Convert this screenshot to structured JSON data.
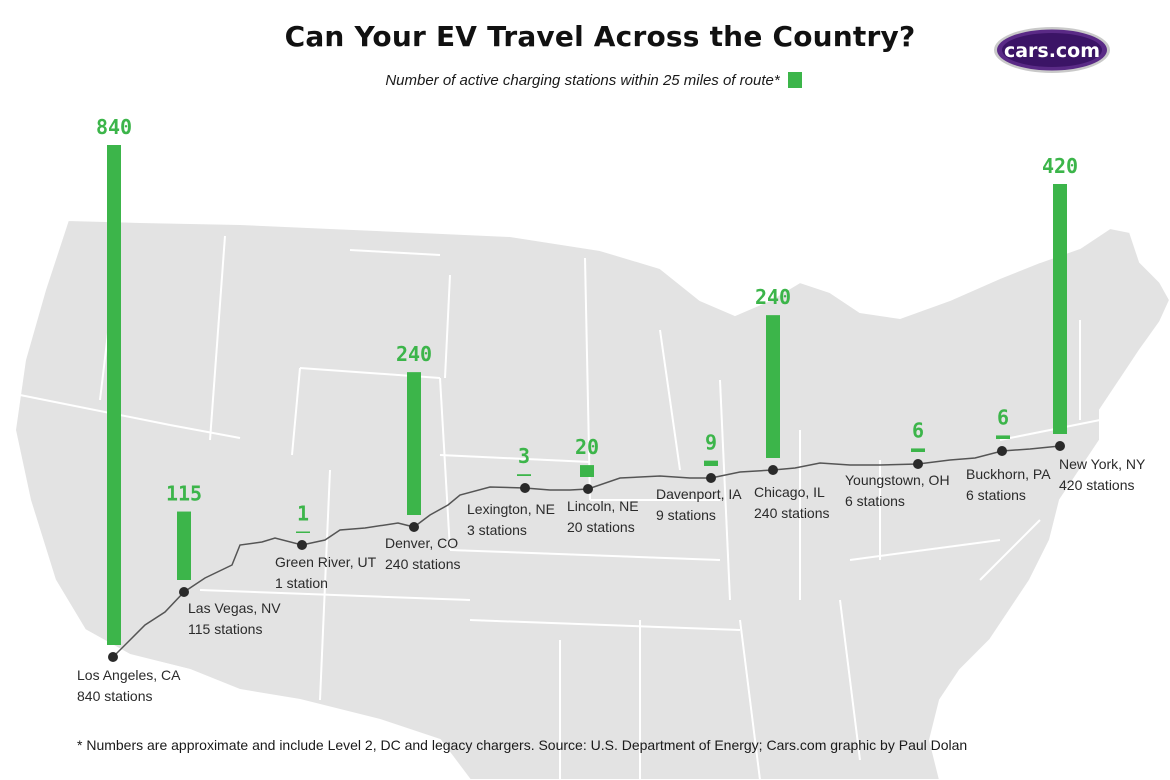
{
  "header": {
    "title": "Can Your EV Travel Across the Country?",
    "subtitle": "Number of active charging stations within 25 miles of  route*",
    "logo_text": "cars.com"
  },
  "footnote": "* Numbers are approximate and include Level 2, DC and legacy chargers. Source: U.S. Department of Energy; Cars.com graphic by Paul Dolan",
  "colors": {
    "bar": "#3cb54a",
    "map": "#e3e3e3",
    "route": "#555555",
    "dot": "#2a2a2a",
    "logo_outer": "#5a2a86",
    "logo_inner": "#3b1466"
  },
  "chart_data": {
    "type": "bar",
    "title": "Can Your EV Travel Across the Country?",
    "subtitle": "Number of active charging stations within 25 miles of  route*",
    "legend": "top-center",
    "categories": [
      "Los Angeles, CA",
      "Las Vegas, NV",
      "Green River, UT",
      "Denver, CO",
      "Lexington, NE",
      "Lincoln, NE",
      "Davenport, IA",
      "Chicago, IL",
      "Youngstown, OH",
      "Buckhorn, PA",
      "New York, NY"
    ],
    "values": [
      840,
      115,
      1,
      240,
      3,
      20,
      9,
      240,
      6,
      6,
      420
    ],
    "value_labels": [
      "840",
      "115",
      "1",
      "240",
      "3",
      "20",
      "9",
      "240",
      "6",
      "6",
      "420"
    ],
    "station_labels": [
      "840 stations",
      "115 stations",
      "1 station",
      "240 stations",
      "3 stations",
      "20 stations",
      "9 stations",
      "240 stations",
      "6 stations",
      "6 stations",
      "420 stations"
    ]
  }
}
